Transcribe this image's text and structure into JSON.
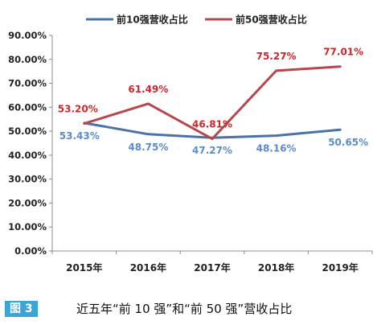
{
  "chart_data": {
    "type": "line",
    "categories": [
      "2015年",
      "2016年",
      "2017年",
      "2018年",
      "2019年"
    ],
    "series": [
      {
        "name": "前10强营收占比",
        "color": "#4a72a8",
        "label_color": "#5b8cc9",
        "values": [
          53.43,
          48.75,
          47.27,
          48.16,
          50.65
        ],
        "labels": [
          "53.43%",
          "48.75%",
          "47.27%",
          "48.16%",
          "50.65%"
        ]
      },
      {
        "name": "前50强营收占比",
        "color": "#b5474d",
        "label_color": "#d0262b",
        "values": [
          53.2,
          61.49,
          46.81,
          75.27,
          77.01
        ],
        "labels": [
          "53.20%",
          "61.49%",
          "46.81%",
          "75.27%",
          "77.01%"
        ]
      }
    ],
    "y_ticks": [
      "0.00%",
      "10.00%",
      "20.00%",
      "30.00%",
      "40.00%",
      "50.00%",
      "60.00%",
      "70.00%",
      "80.00%",
      "90.00%"
    ],
    "ylim": [
      0,
      90
    ],
    "legend_position": "top",
    "grid": false
  },
  "caption": {
    "tag": "图 3",
    "text": "近五年“前 10 强”和“前 50 强”营收占比"
  }
}
